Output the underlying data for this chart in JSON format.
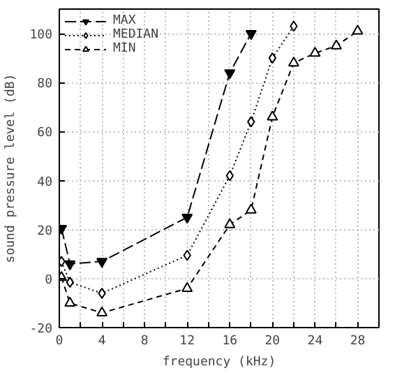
{
  "chart_data": {
    "type": "line",
    "xlabel": "frequency (kHz)",
    "ylabel": "sound pressure level (dB)",
    "xlim": [
      0,
      30
    ],
    "ylim": [
      -20,
      110
    ],
    "xticks": [
      0,
      {
        "value": 2,
        "label": null
      },
      4,
      {
        "value": 6,
        "label": null
      },
      8,
      {
        "value": 10,
        "label": null
      },
      12,
      {
        "value": 14,
        "label": null
      },
      16,
      {
        "value": 18,
        "label": null
      },
      20,
      {
        "value": 22,
        "label": null
      },
      24,
      {
        "value": 26,
        "label": null
      },
      28,
      {
        "value": 30,
        "label": null
      }
    ],
    "yticks": [
      -20,
      0,
      20,
      40,
      60,
      80,
      100
    ],
    "grid": true,
    "legend": "top left",
    "series": [
      {
        "name": "MAX",
        "color": "#000000",
        "marker": "triangle",
        "line_style": "dashed",
        "x": [
          0.2,
          1,
          4,
          12,
          16,
          18
        ],
        "values": [
          20.5,
          6,
          7,
          25,
          84,
          100
        ]
      },
      {
        "name": "MEDIAN",
        "color": "#000000",
        "marker": "diamond",
        "line_style": "dotted",
        "x": [
          0.2,
          1,
          4,
          12,
          16,
          18,
          20,
          22
        ],
        "values": [
          7,
          -1.5,
          -6,
          9.5,
          42,
          64,
          90,
          103
        ]
      },
      {
        "name": "MIN",
        "color": "#000000",
        "marker": "triangle",
        "line_style": "dashed_short",
        "x": [
          0.2,
          1,
          4,
          12,
          16,
          18,
          20,
          22,
          24,
          26,
          28
        ],
        "values": [
          0.5,
          -10,
          -14,
          -4,
          22,
          28,
          66,
          88,
          92,
          95,
          101
        ]
      }
    ]
  }
}
